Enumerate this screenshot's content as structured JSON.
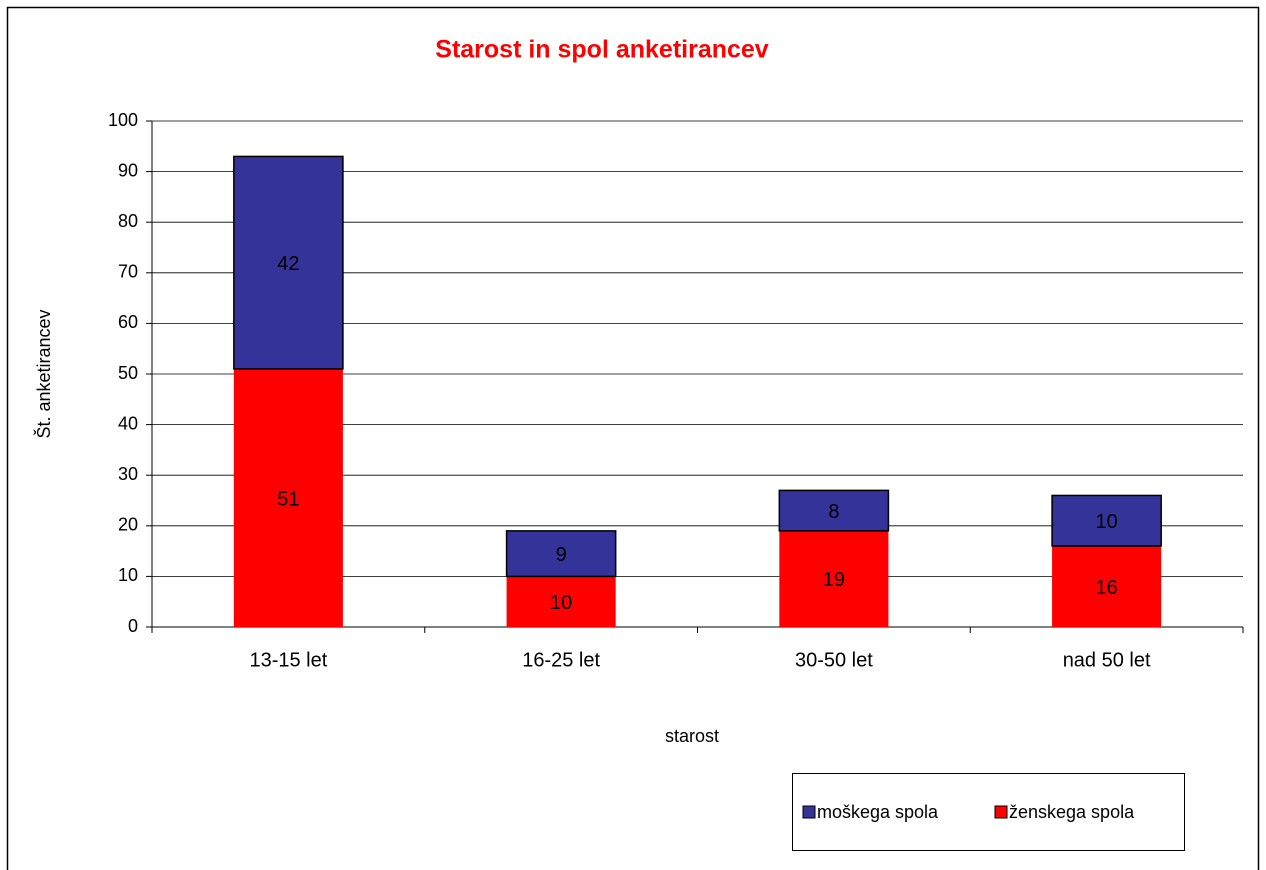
{
  "chart_data": {
    "type": "stacked_bar",
    "title": "Starost in spol anketirancev",
    "x_label": "starost",
    "y_label": "Št. anketirancev",
    "categories": [
      "13-15 let",
      "16-25 let",
      "30-50 let",
      "nad 50 let"
    ],
    "series": [
      {
        "name": "moškega spola",
        "color": "#333399",
        "values": [
          42,
          9,
          8,
          10
        ]
      },
      {
        "name": "ženskega spola",
        "color": "#ff0000",
        "values": [
          51,
          10,
          19,
          16
        ]
      }
    ],
    "ylim": [
      0,
      100
    ],
    "yticks": [
      0,
      10,
      20,
      30,
      40,
      50,
      60,
      70,
      80,
      90,
      100
    ],
    "grid": true,
    "legend": "bottom-right"
  }
}
